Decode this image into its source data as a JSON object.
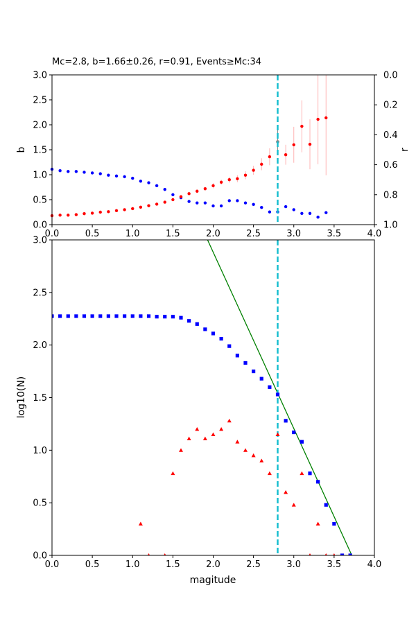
{
  "chart_data": [
    {
      "name": "b-value-panel",
      "type": "scatter",
      "title": "Mc=2.8, b=1.66±0.26, r=0.91, Events≥Mc:34",
      "xlabel": "",
      "ylabel": "b",
      "ylabel_right": "r",
      "xlim": [
        0,
        4
      ],
      "ylim": [
        0,
        3
      ],
      "ylim_right": [
        1,
        0
      ],
      "xticks": [
        "0.0",
        "0.5",
        "1.0",
        "1.5",
        "2.0",
        "2.5",
        "3.0",
        "3.5",
        "4.0"
      ],
      "yticks": [
        "0.0",
        "0.5",
        "1.0",
        "1.5",
        "2.0",
        "2.5",
        "3.0"
      ],
      "yticks_right": [
        "0.0",
        "0.2",
        "0.4",
        "0.6",
        "0.8",
        "1.0"
      ],
      "mc_line": 2.8,
      "mc_marker": {
        "x": 2.8,
        "b": 1.66,
        "err": 0.26,
        "color": "#888888"
      },
      "colors": {
        "b": "#ff0000",
        "errorbar": "#ffb3b3",
        "r": "#0000ff",
        "mc": "#17becf"
      },
      "series": [
        {
          "name": "b",
          "axis": "left",
          "x": [
            0.0,
            0.1,
            0.2,
            0.3,
            0.4,
            0.5,
            0.6,
            0.7,
            0.8,
            0.9,
            1.0,
            1.1,
            1.2,
            1.3,
            1.4,
            1.5,
            1.6,
            1.7,
            1.8,
            1.9,
            2.0,
            2.1,
            2.2,
            2.3,
            2.4,
            2.5,
            2.6,
            2.7,
            2.9,
            3.0,
            3.1,
            3.2,
            3.3,
            3.4
          ],
          "values": [
            0.18,
            0.19,
            0.19,
            0.2,
            0.22,
            0.23,
            0.25,
            0.26,
            0.28,
            0.3,
            0.32,
            0.35,
            0.38,
            0.41,
            0.45,
            0.5,
            0.56,
            0.62,
            0.67,
            0.72,
            0.78,
            0.85,
            0.9,
            0.92,
            0.99,
            1.09,
            1.21,
            1.36,
            1.4,
            1.6,
            1.97,
            1.61,
            2.11,
            2.14
          ],
          "errors": [
            0.01,
            0.01,
            0.01,
            0.01,
            0.01,
            0.01,
            0.01,
            0.01,
            0.01,
            0.01,
            0.01,
            0.02,
            0.02,
            0.02,
            0.02,
            0.02,
            0.03,
            0.03,
            0.03,
            0.04,
            0.05,
            0.05,
            0.06,
            0.07,
            0.08,
            0.09,
            0.12,
            0.17,
            0.2,
            0.36,
            0.52,
            0.5,
            0.9,
            1.15
          ]
        },
        {
          "name": "r",
          "axis": "right",
          "x": [
            0.0,
            0.1,
            0.2,
            0.3,
            0.4,
            0.5,
            0.6,
            0.7,
            0.8,
            0.9,
            1.0,
            1.1,
            1.2,
            1.3,
            1.4,
            1.5,
            1.6,
            1.7,
            1.8,
            1.9,
            2.0,
            2.1,
            2.2,
            2.3,
            2.4,
            2.5,
            2.6,
            2.7,
            2.8,
            2.9,
            3.0,
            3.1,
            3.2,
            3.3,
            3.4
          ],
          "values": [
            0.63,
            0.64,
            0.645,
            0.645,
            0.65,
            0.655,
            0.66,
            0.67,
            0.675,
            0.68,
            0.69,
            0.71,
            0.72,
            0.74,
            0.765,
            0.8,
            0.82,
            0.845,
            0.855,
            0.855,
            0.875,
            0.875,
            0.84,
            0.84,
            0.855,
            0.865,
            0.885,
            0.915,
            0.915,
            0.88,
            0.9,
            0.925,
            0.925,
            0.95,
            0.92
          ]
        }
      ]
    },
    {
      "name": "frequency-magnitude-panel",
      "type": "scatter",
      "title": "",
      "xlabel": "magitude",
      "ylabel": "log10(N)",
      "xlim": [
        0,
        4
      ],
      "ylim": [
        0,
        3
      ],
      "xticks": [
        "0.0",
        "0.5",
        "1.0",
        "1.5",
        "2.0",
        "2.5",
        "3.0",
        "3.5",
        "4.0"
      ],
      "yticks": [
        "0.0",
        "0.5",
        "1.0",
        "1.5",
        "2.0",
        "2.5",
        "3.0"
      ],
      "mc_line": 2.8,
      "colors": {
        "cumulative": "#0000ff",
        "noncumulative": "#ff0000",
        "fit": "#008000",
        "mc": "#17becf"
      },
      "fit_line": {
        "x": [
          1.93,
          3.72
        ],
        "values": [
          3.0,
          0.0
        ]
      },
      "series": [
        {
          "name": "cumulative",
          "marker": "square",
          "x": [
            0.0,
            0.1,
            0.2,
            0.3,
            0.4,
            0.5,
            0.6,
            0.7,
            0.8,
            0.9,
            1.0,
            1.1,
            1.2,
            1.3,
            1.4,
            1.5,
            1.6,
            1.7,
            1.8,
            1.9,
            2.0,
            2.1,
            2.2,
            2.3,
            2.4,
            2.5,
            2.6,
            2.7,
            2.8,
            2.9,
            3.0,
            3.1,
            3.2,
            3.3,
            3.4,
            3.5,
            3.6,
            3.7
          ],
          "values": [
            2.275,
            2.275,
            2.275,
            2.275,
            2.275,
            2.275,
            2.275,
            2.275,
            2.275,
            2.275,
            2.275,
            2.275,
            2.275,
            2.27,
            2.27,
            2.27,
            2.26,
            2.23,
            2.2,
            2.15,
            2.11,
            2.06,
            1.99,
            1.9,
            1.83,
            1.75,
            1.68,
            1.6,
            1.53,
            1.28,
            1.17,
            1.08,
            0.78,
            0.7,
            0.48,
            0.3,
            0.0,
            0.0
          ]
        },
        {
          "name": "noncumulative",
          "marker": "triangle",
          "x": [
            1.1,
            1.2,
            1.4,
            1.5,
            1.6,
            1.7,
            1.8,
            1.9,
            2.0,
            2.1,
            2.2,
            2.3,
            2.4,
            2.5,
            2.6,
            2.7,
            2.8,
            2.9,
            3.0,
            3.1,
            3.2,
            3.3,
            3.4,
            3.5
          ],
          "values": [
            0.3,
            0.0,
            0.0,
            0.78,
            1.0,
            1.11,
            1.2,
            1.11,
            1.15,
            1.2,
            1.28,
            1.08,
            1.0,
            0.95,
            0.9,
            0.78,
            1.15,
            0.6,
            0.48,
            0.78,
            0.0,
            0.3,
            0.0,
            0.0
          ]
        }
      ]
    }
  ]
}
